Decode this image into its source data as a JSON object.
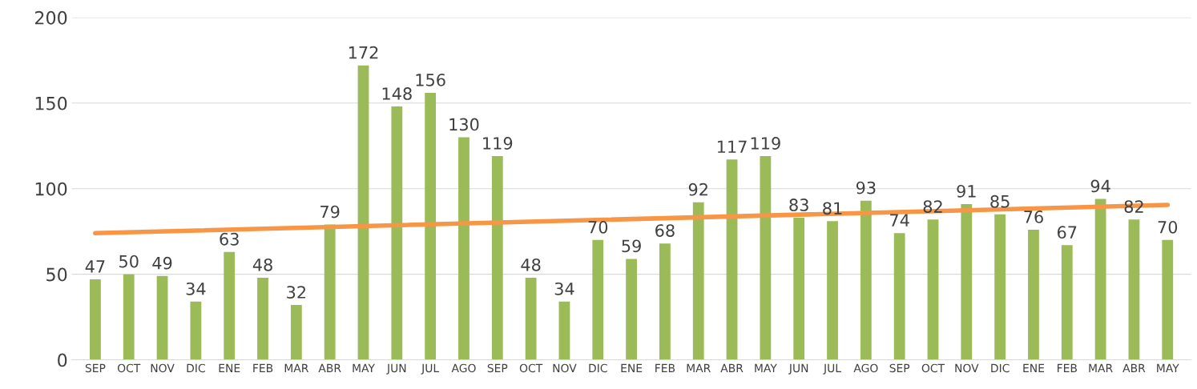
{
  "chart_data": {
    "type": "bar",
    "categories": [
      "SEP",
      "OCT",
      "NOV",
      "DIC",
      "ENE",
      "FEB",
      "MAR",
      "ABR",
      "MAY",
      "JUN",
      "JUL",
      "AGO",
      "SEP",
      "OCT",
      "NOV",
      "DIC",
      "ENE",
      "FEB",
      "MAR",
      "ABR",
      "MAY",
      "JUN",
      "JUL",
      "AGO",
      "SEP",
      "OCT",
      "NOV",
      "DIC",
      "ENE",
      "FEB",
      "MAR",
      "ABR",
      "MAY"
    ],
    "series": [
      {
        "color": "#9bbb59",
        "values": [
          47,
          50,
          49,
          34,
          63,
          48,
          32,
          79,
          172,
          148,
          156,
          130,
          119,
          48,
          34,
          70,
          59,
          68,
          92,
          117,
          119,
          83,
          81,
          93,
          74,
          82,
          91,
          85,
          76,
          67,
          94,
          82,
          70
        ],
        "value_labels": [
          "47",
          "50",
          "49",
          "34",
          "63",
          "48",
          "32",
          "79",
          "172",
          "148",
          "156",
          "130",
          "119",
          "48",
          "34",
          "70",
          "59",
          "68",
          "92",
          "117",
          "119",
          "83",
          "81",
          "93",
          "74",
          "82",
          "91",
          "85",
          "76",
          "67",
          "94",
          "82",
          "70"
        ]
      },
      {
        "type": "line",
        "color": "#f79646",
        "values": [
          74,
          null,
          null,
          null,
          null,
          null,
          null,
          null,
          null,
          null,
          null,
          null,
          null,
          null,
          null,
          null,
          null,
          null,
          null,
          null,
          null,
          null,
          null,
          null,
          null,
          null,
          null,
          null,
          null,
          null,
          null,
          null,
          90.5
        ]
      }
    ],
    "ylim": [
      0,
      200
    ],
    "yticks": [
      0,
      50,
      100,
      150,
      200
    ],
    "grid": "y",
    "legend": false
  }
}
